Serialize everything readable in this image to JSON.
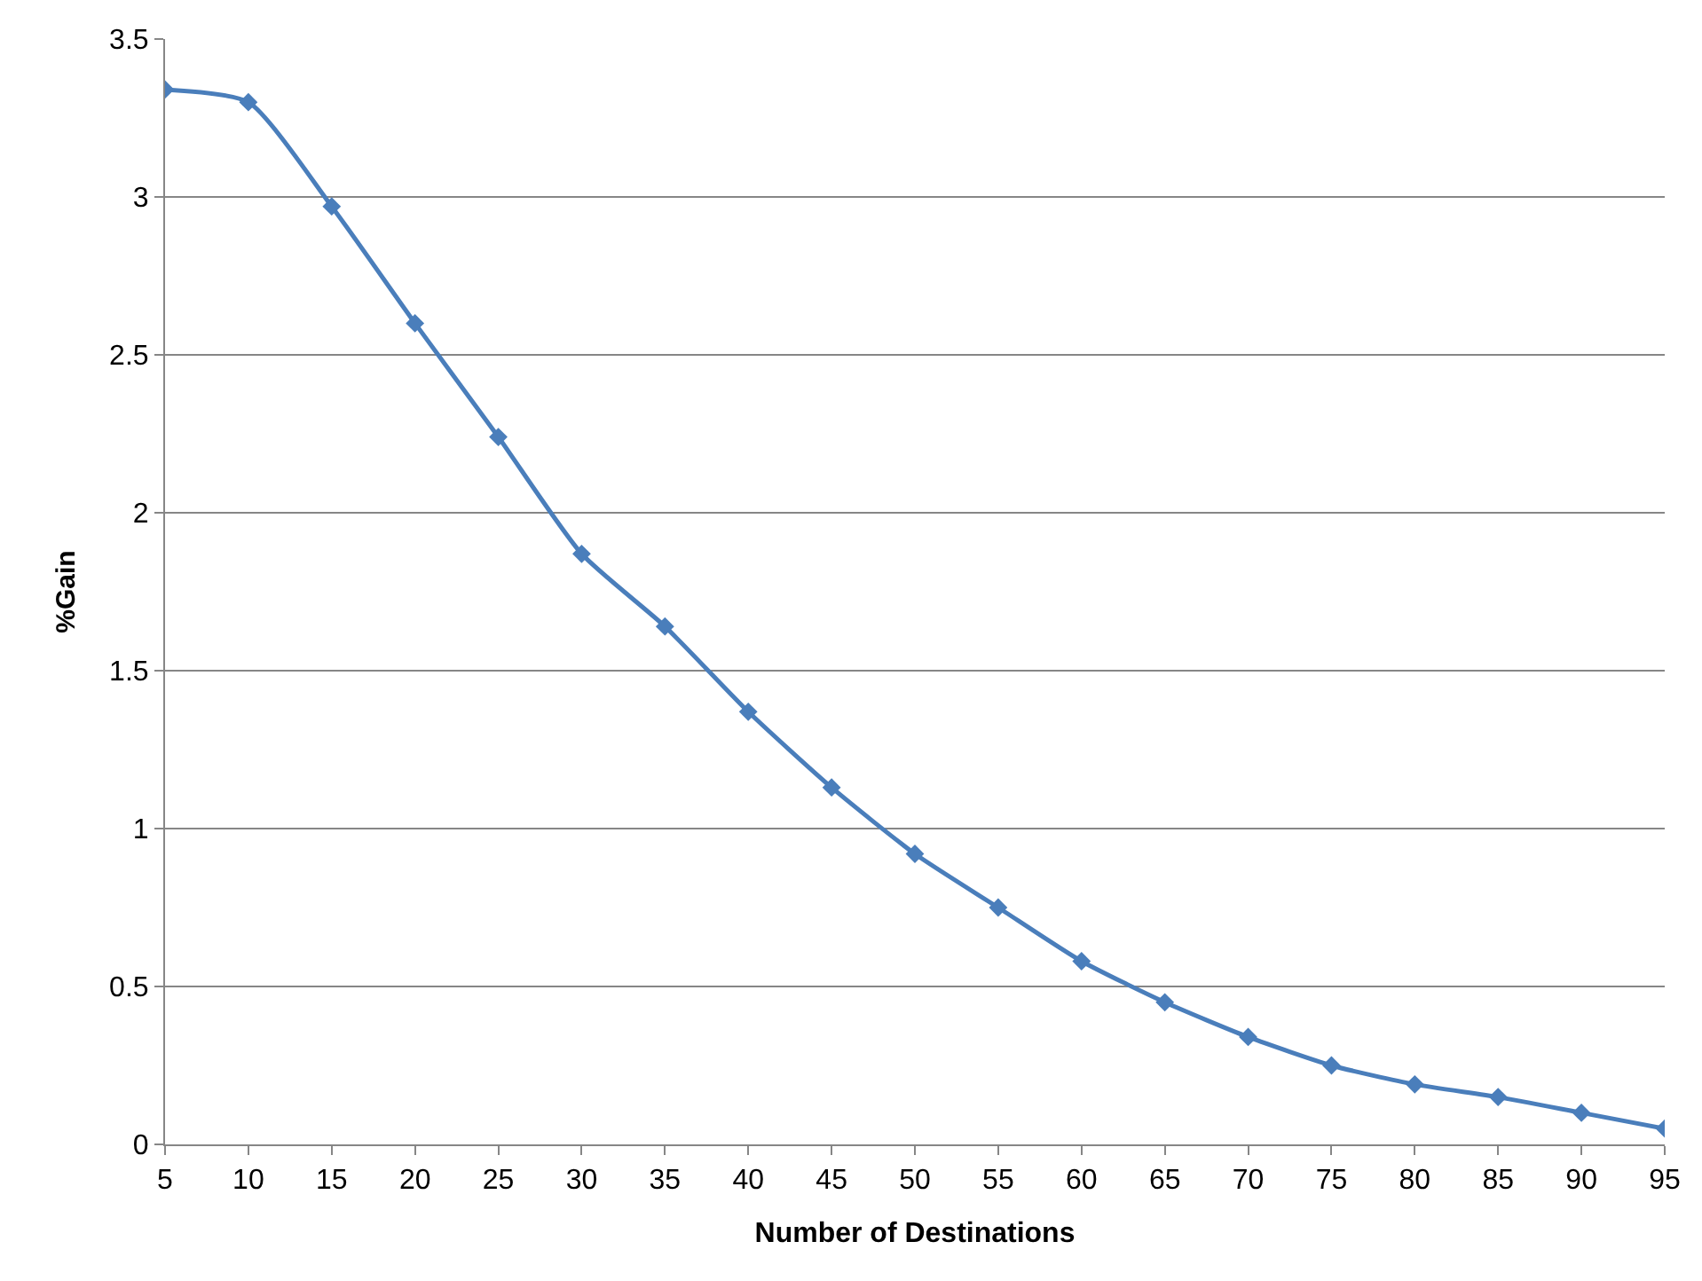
{
  "chart_data": {
    "type": "line",
    "xlabel": "Number of Destinations",
    "ylabel": "%Gain",
    "x": [
      5,
      10,
      15,
      20,
      25,
      30,
      35,
      40,
      45,
      50,
      55,
      60,
      65,
      70,
      75,
      80,
      85,
      90,
      95
    ],
    "series": [
      {
        "color": "#4a7ebb",
        "values": [
          3.34,
          3.3,
          2.97,
          2.6,
          2.24,
          1.87,
          1.64,
          1.37,
          1.13,
          0.92,
          0.75,
          0.58,
          0.45,
          0.34,
          0.25,
          0.19,
          0.15,
          0.1,
          0.05
        ]
      }
    ],
    "xlim": [
      5,
      95
    ],
    "xticks": [
      5,
      10,
      15,
      20,
      25,
      30,
      35,
      40,
      45,
      50,
      55,
      60,
      65,
      70,
      75,
      80,
      85,
      90,
      95
    ],
    "ylim": [
      0,
      3.5
    ],
    "yticks": [
      0,
      0.5,
      1,
      1.5,
      2,
      2.5,
      3,
      3.5
    ],
    "grid": "y",
    "legend": false,
    "marker": "diamond",
    "line_style": "solid"
  }
}
